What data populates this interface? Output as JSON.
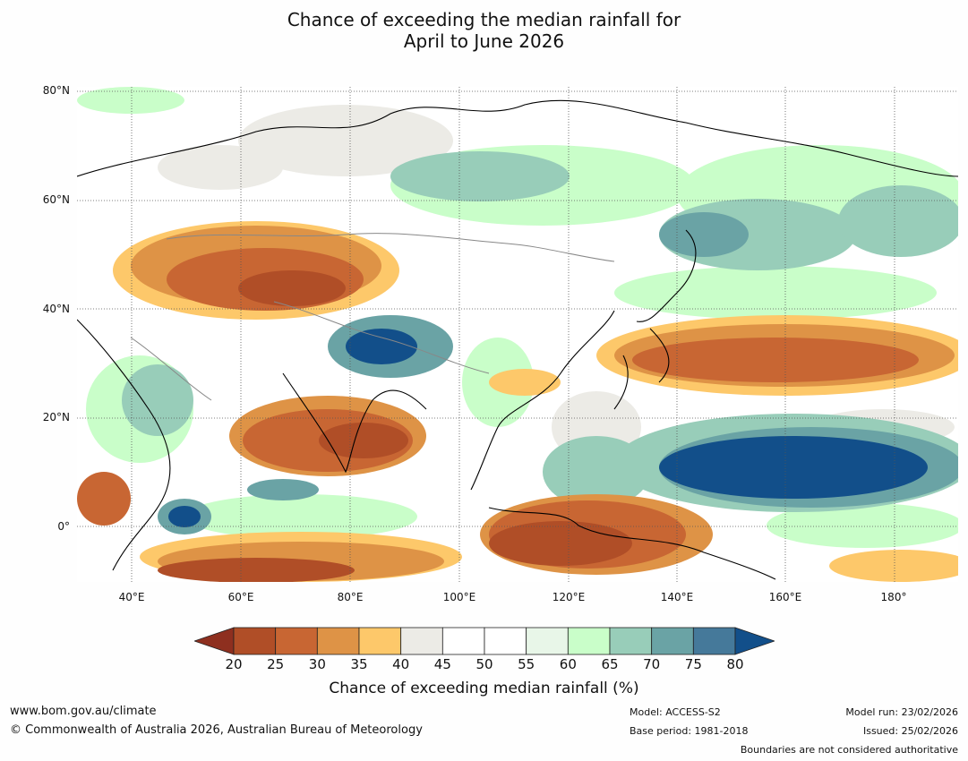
{
  "title_line1": "Chance of exceeding the median rainfall for",
  "title_line2": "April to June 2026",
  "lat_labels": [
    "80°N",
    "60°N",
    "40°N",
    "20°N",
    "0°"
  ],
  "lon_labels": [
    "40°E",
    "60°E",
    "80°E",
    "100°E",
    "120°E",
    "140°E",
    "160°E",
    "180°"
  ],
  "colorbar": {
    "ticks": [
      "20",
      "25",
      "30",
      "35",
      "40",
      "45",
      "50",
      "55",
      "60",
      "65",
      "70",
      "75",
      "80"
    ],
    "colors": [
      "#8e2f1f",
      "#b04e27",
      "#c86633",
      "#de9346",
      "#fdc86a",
      "#ecebe6",
      "#ffffff",
      "#ffffff",
      "#e8f6e8",
      "#c9fec9",
      "#98cdb9",
      "#6aa3a5",
      "#45799a",
      "#124f8a"
    ],
    "title": "Chance of exceeding median rainfall (%)"
  },
  "footer": {
    "website": "www.bom.gov.au/climate",
    "copyright": "© Commonwealth of Australia 2026, Australian Bureau of Meteorology",
    "model": "Model: ACCESS-S2",
    "base_period": "Base period: 1981-2018",
    "model_run": "Model run: 23/02/2026",
    "issued": "Issued: 25/02/2026",
    "disclaimer": "Boundaries are not considered authoritative"
  }
}
